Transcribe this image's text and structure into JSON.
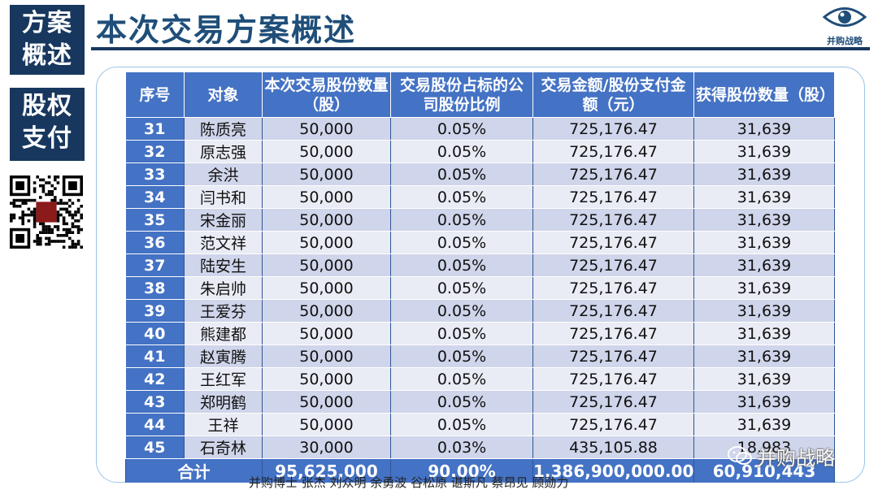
{
  "sidebar": {
    "box1": [
      "方案",
      "概述"
    ],
    "box2": [
      "股权",
      "支付"
    ],
    "qr_stamp": "并购\n战略"
  },
  "header": {
    "title": "本次交易方案概述",
    "logo_text": "并购战略"
  },
  "table": {
    "headers": [
      "序号",
      "对象",
      "本次交易股份数量（股）",
      "交易股份占标的公司股份比例",
      "交易金额/股份支付金额（元）",
      "获得股份数量（股）"
    ],
    "rows": [
      [
        "31",
        "陈质亮",
        "50,000",
        "0.05%",
        "725,176.47",
        "31,639"
      ],
      [
        "32",
        "原志强",
        "50,000",
        "0.05%",
        "725,176.47",
        "31,639"
      ],
      [
        "33",
        "余洪",
        "50,000",
        "0.05%",
        "725,176.47",
        "31,639"
      ],
      [
        "34",
        "闫书和",
        "50,000",
        "0.05%",
        "725,176.47",
        "31,639"
      ],
      [
        "35",
        "宋金丽",
        "50,000",
        "0.05%",
        "725,176.47",
        "31,639"
      ],
      [
        "36",
        "范文祥",
        "50,000",
        "0.05%",
        "725,176.47",
        "31,639"
      ],
      [
        "37",
        "陆安生",
        "50,000",
        "0.05%",
        "725,176.47",
        "31,639"
      ],
      [
        "38",
        "朱启帅",
        "50,000",
        "0.05%",
        "725,176.47",
        "31,639"
      ],
      [
        "39",
        "王爱芬",
        "50,000",
        "0.05%",
        "725,176.47",
        "31,639"
      ],
      [
        "40",
        "熊建都",
        "50,000",
        "0.05%",
        "725,176.47",
        "31,639"
      ],
      [
        "41",
        "赵寅腾",
        "50,000",
        "0.05%",
        "725,176.47",
        "31,639"
      ],
      [
        "42",
        "王红军",
        "50,000",
        "0.05%",
        "725,176.47",
        "31,639"
      ],
      [
        "43",
        "郑明鹤",
        "50,000",
        "0.05%",
        "725,176.47",
        "31,639"
      ],
      [
        "44",
        "王祥",
        "50,000",
        "0.05%",
        "725,176.47",
        "31,639"
      ],
      [
        "45",
        "石奇林",
        "30,000",
        "0.03%",
        "435,105.88",
        "18,983"
      ]
    ],
    "total": {
      "label": "合计",
      "shares": "95,625,000",
      "ratio": "90.00%",
      "amount": "1,386,900,000.00",
      "acquired": "60,910,443"
    }
  },
  "footer": {
    "authors": "并购博士 张杰 刘众明 余勇波 谷松原 谌斯凡 蔡昂见 顾勋力"
  },
  "watermark": {
    "text": "并购战略"
  },
  "colors": {
    "side_box": "#17375e",
    "title": "#1f4e79",
    "header_blue": "#4472c4",
    "row_dark": "#cfd5ea",
    "row_light": "#e9ebf5"
  }
}
